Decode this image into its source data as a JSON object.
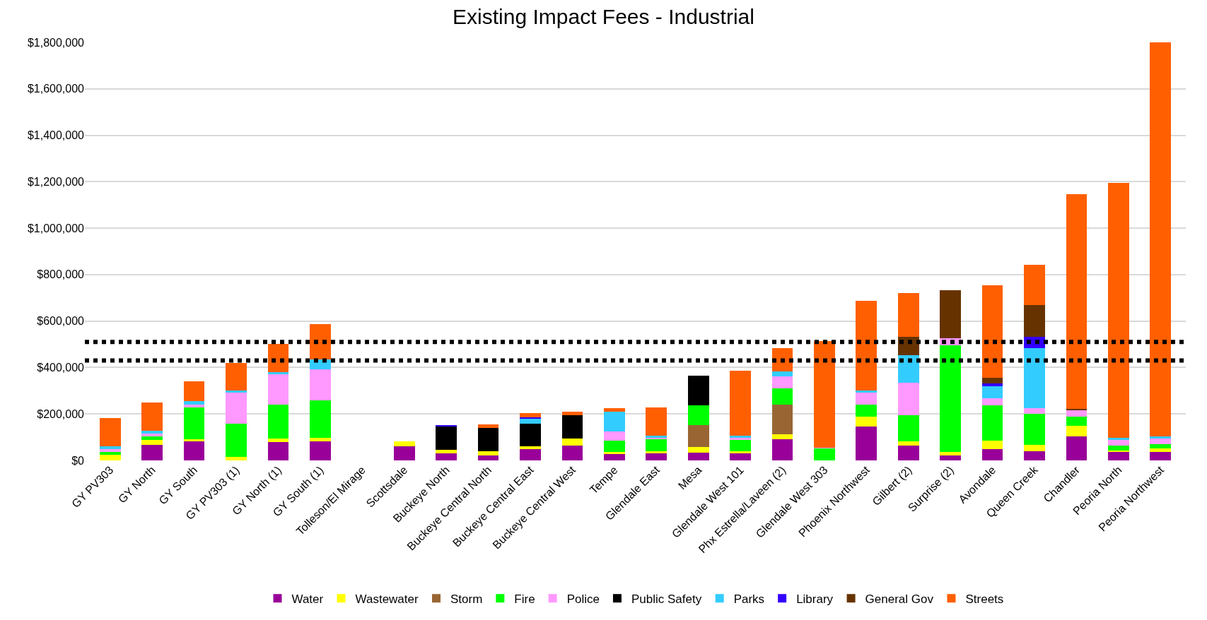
{
  "chart_data": {
    "type": "bar",
    "stacked": true,
    "title": "Existing Impact Fees - Industrial",
    "categories": [
      "GY PV303",
      "GY North",
      "GY South",
      "GY PV303 (1)",
      "GY North (1)",
      "GY South (1)",
      "Tolleson/El Mirage",
      "Scottsdale",
      "Buckeye North",
      "Buckeye Central North",
      "Buckeye Central East",
      "Buckeye Central West",
      "Tempe",
      "Glendale East",
      "Mesa",
      "Glendale West 101",
      "Phx Estrella/Laveen (2)",
      "Glendale West 303",
      "Phoenix Northwest",
      "Gilbert (2)",
      "Surprise (2)",
      "Avondale",
      "Queen Creek",
      "Chandler",
      "Peoria North",
      "Peoria Northwest"
    ],
    "series": [
      {
        "name": "Water",
        "color": "#990099",
        "values": [
          null,
          67000,
          82000,
          null,
          79000,
          82000,
          null,
          62000,
          29000,
          21000,
          50000,
          64000,
          26000,
          29000,
          34000,
          29000,
          90000,
          null,
          146000,
          65000,
          22000,
          49000,
          41000,
          103000,
          38000,
          38000
        ]
      },
      {
        "name": "Wastewater",
        "color": "#ffff00",
        "values": [
          23000,
          22000,
          8000,
          14000,
          15000,
          14000,
          null,
          21000,
          17000,
          18000,
          12000,
          31000,
          10000,
          10000,
          23000,
          10000,
          23000,
          null,
          44000,
          17000,
          16000,
          36000,
          27000,
          47000,
          5000,
          13000
        ]
      },
      {
        "name": "Storm",
        "color": "#996633",
        "values": [
          null,
          null,
          null,
          null,
          null,
          null,
          null,
          null,
          null,
          null,
          null,
          null,
          null,
          null,
          94000,
          null,
          128000,
          null,
          null,
          null,
          null,
          null,
          null,
          null,
          null,
          null
        ]
      },
      {
        "name": "Fire",
        "color": "#00ff00",
        "values": [
          14000,
          14000,
          139000,
          144000,
          145000,
          163000,
          null,
          null,
          null,
          null,
          null,
          null,
          50000,
          52000,
          86000,
          52000,
          68000,
          52000,
          50000,
          113000,
          459000,
          152000,
          132000,
          40000,
          20000,
          20000
        ]
      },
      {
        "name": "Police",
        "color": "#ff99ff",
        "values": [
          11000,
          12000,
          12000,
          133000,
          132000,
          132000,
          null,
          null,
          null,
          null,
          null,
          null,
          39000,
          7000,
          null,
          5000,
          54000,
          4000,
          52000,
          139000,
          29000,
          31000,
          24000,
          27000,
          24000,
          22000
        ]
      },
      {
        "name": "Public Safety",
        "color": "#000000",
        "values": [
          null,
          null,
          null,
          null,
          null,
          null,
          null,
          null,
          100000,
          100000,
          97000,
          99000,
          null,
          null,
          128000,
          null,
          null,
          null,
          null,
          null,
          null,
          null,
          null,
          null,
          null,
          null
        ]
      },
      {
        "name": "Parks",
        "color": "#33ccff",
        "values": [
          12000,
          13000,
          14000,
          9000,
          9000,
          44000,
          null,
          null,
          null,
          null,
          21000,
          null,
          84000,
          7000,
          null,
          9000,
          20000,
          null,
          8000,
          119000,
          null,
          52000,
          258000,
          null,
          9000,
          11000
        ]
      },
      {
        "name": "Library",
        "color": "#3300ff",
        "values": [
          null,
          null,
          null,
          null,
          null,
          null,
          null,
          null,
          5000,
          null,
          7000,
          null,
          null,
          null,
          null,
          null,
          null,
          null,
          null,
          null,
          null,
          11000,
          51000,
          null,
          null,
          null
        ]
      },
      {
        "name": "General Gov",
        "color": "#663300",
        "values": [
          null,
          null,
          null,
          null,
          null,
          null,
          null,
          null,
          null,
          null,
          null,
          null,
          null,
          null,
          null,
          null,
          null,
          null,
          null,
          80000,
          206000,
          24000,
          135000,
          5000,
          null,
          null
        ]
      },
      {
        "name": "Streets",
        "color": "#ff5f00",
        "values": [
          123000,
          122000,
          86000,
          121000,
          122000,
          151000,
          null,
          null,
          null,
          16000,
          17000,
          17000,
          15000,
          123000,
          null,
          280000,
          100000,
          459000,
          388000,
          189000,
          null,
          400000,
          173000,
          925000,
          1100000,
          1695000
        ]
      }
    ],
    "ylim": [
      0,
      1800000
    ],
    "yticks": [
      {
        "value": 0,
        "label": "$0"
      },
      {
        "value": 200000,
        "label": "$200,000"
      },
      {
        "value": 400000,
        "label": "$400,000"
      },
      {
        "value": 600000,
        "label": "$600,000"
      },
      {
        "value": 800000,
        "label": "$800,000"
      },
      {
        "value": 1000000,
        "label": "$1,000,000"
      },
      {
        "value": 1200000,
        "label": "$1,200,000"
      },
      {
        "value": 1400000,
        "label": "$1,400,000"
      },
      {
        "value": 1600000,
        "label": "$1,600,000"
      },
      {
        "value": 1800000,
        "label": "$1,800,000"
      }
    ],
    "ref_lines": [
      {
        "axis": "y",
        "value": 430000,
        "color": "#000000",
        "line_style": "dotted"
      },
      {
        "axis": "y",
        "value": 510000,
        "color": "#000000",
        "line_style": "dotted"
      }
    ],
    "grid": "y",
    "legend": "bottom"
  }
}
